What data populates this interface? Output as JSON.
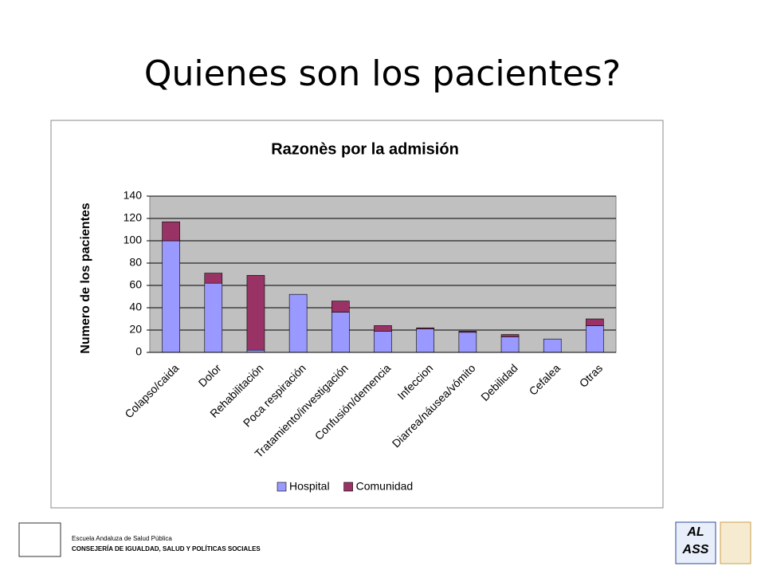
{
  "slide": {
    "title": "Quienes son los pacientes?",
    "footer_left": [
      "Escuela Andaluza de Salud Pública",
      "CONSEJERÍA DE IGUALDAD, SALUD Y POLÍTICAS SOCIALES"
    ],
    "footer_right": [
      "AL",
      "ASS"
    ]
  },
  "chart_data": {
    "type": "stacked_bar",
    "title": "Razonès por la admisión",
    "y_label": "Numero de los pacientes",
    "categories": [
      "Colapso/caida",
      "Dolor",
      "Rehabilitación",
      "Poca respiración",
      "Tratamiento/investigación",
      "Confusión/demencia",
      "Infeccion",
      "Diarrea/náusea/vómito",
      "Debilidad",
      "Cefalea",
      "Otras"
    ],
    "series": [
      {
        "name": "Hospital",
        "color": "#9999ff",
        "values": [
          100,
          62,
          2,
          52,
          36,
          19,
          21,
          18,
          14,
          12,
          24
        ]
      },
      {
        "name": "Comunidad",
        "color": "#993366",
        "values": [
          17,
          9,
          67,
          0,
          10,
          5,
          1,
          1,
          2,
          0,
          6
        ]
      }
    ],
    "ylim": [
      0,
      140
    ],
    "yticks": [
      0,
      20,
      40,
      60,
      80,
      100,
      120,
      140
    ],
    "grid": true,
    "plot_background": "#c0c0c0",
    "legend": "bottom"
  }
}
